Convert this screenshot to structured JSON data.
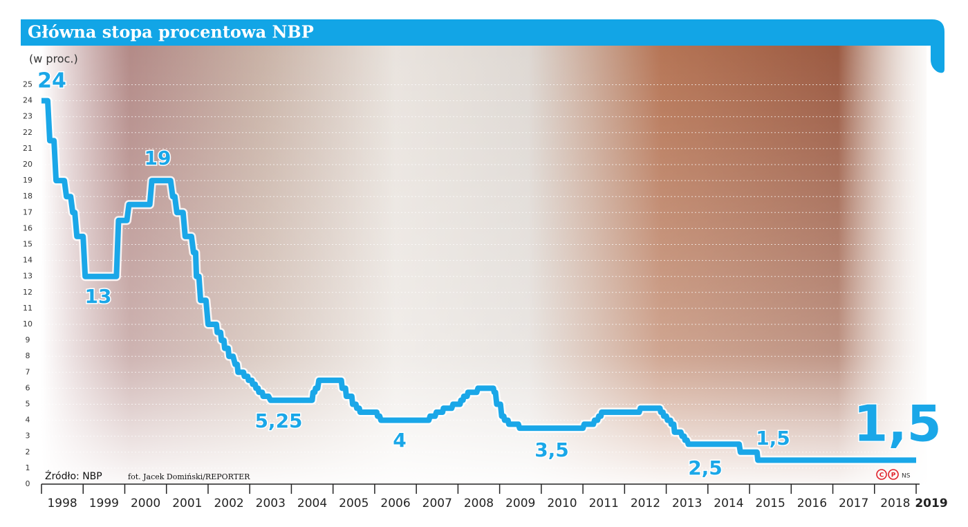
{
  "chart_data": {
    "type": "line",
    "title": "Główna stopa procentowa NBP",
    "y_label": "(w proc.)",
    "source": "Źródło: NBP",
    "photo_credit": "fot. Jacek Domiński/REPORTER",
    "copyright_marks": [
      "C",
      "P"
    ],
    "author": "NS",
    "color": "#1aa7e8",
    "x": [
      1998.0,
      1998.15,
      1998.2,
      1998.3,
      1998.35,
      1998.55,
      1998.6,
      1998.7,
      1998.75,
      1998.8,
      1998.85,
      1999.0,
      1999.05,
      1999.8,
      1999.85,
      2000.05,
      2000.1,
      2000.6,
      2000.65,
      2001.1,
      2001.15,
      2001.2,
      2001.25,
      2001.4,
      2001.45,
      2001.6,
      2001.65,
      2001.7,
      2001.72,
      2001.78,
      2001.82,
      2001.95,
      2002.0,
      2002.2,
      2002.22,
      2002.3,
      2002.32,
      2002.38,
      2002.4,
      2002.48,
      2002.5,
      2002.6,
      2002.65,
      2002.7,
      2002.72,
      2002.85,
      2002.87,
      2002.95,
      2002.97,
      2003.05,
      2003.07,
      2003.13,
      2003.15,
      2003.2,
      2003.22,
      2003.3,
      2003.32,
      2003.45,
      2003.5,
      2004.5,
      2004.52,
      2004.56,
      2004.58,
      2004.63,
      2004.66,
      2005.2,
      2005.22,
      2005.3,
      2005.32,
      2005.45,
      2005.47,
      2005.55,
      2005.57,
      2005.63,
      2005.65,
      2006.05,
      2006.07,
      2006.12,
      2006.15,
      2007.3,
      2007.33,
      2007.45,
      2007.48,
      2007.63,
      2007.65,
      2007.85,
      2007.88,
      2008.05,
      2008.07,
      2008.12,
      2008.14,
      2008.22,
      2008.24,
      2008.45,
      2008.48,
      2008.85,
      2008.87,
      2008.9,
      2008.93,
      2009.02,
      2009.05,
      2009.1,
      2009.12,
      2009.2,
      2009.22,
      2009.45,
      2009.48,
      2011.0,
      2011.03,
      2011.25,
      2011.28,
      2011.35,
      2011.38,
      2011.43,
      2011.45,
      2012.35,
      2012.38,
      2012.85,
      2012.87,
      2012.92,
      2012.94,
      2013.0,
      2013.03,
      2013.1,
      2013.12,
      2013.18,
      2013.2,
      2013.35,
      2013.38,
      2013.43,
      2013.45,
      2013.5,
      2013.53,
      2014.75,
      2014.78,
      2015.18,
      2015.2,
      2019.0
    ],
    "values": [
      24,
      24,
      21.5,
      21.5,
      19,
      19,
      18,
      18,
      17,
      17,
      15.5,
      15.5,
      13,
      13,
      16.5,
      16.5,
      17.5,
      17.5,
      19,
      19,
      18,
      18,
      17,
      17,
      15.5,
      15.5,
      14.5,
      14.5,
      13,
      13,
      11.5,
      11.5,
      10,
      10,
      9.5,
      9.5,
      9,
      9,
      8.5,
      8.5,
      8,
      8,
      7.5,
      7.5,
      7,
      7,
      6.75,
      6.75,
      6.5,
      6.5,
      6.25,
      6.25,
      6,
      6,
      5.75,
      5.75,
      5.5,
      5.5,
      5.25,
      5.25,
      5.75,
      5.75,
      6,
      6,
      6.5,
      6.5,
      6,
      6,
      5.5,
      5.5,
      5,
      5,
      4.75,
      4.75,
      4.5,
      4.5,
      4.25,
      4.25,
      4,
      4,
      4.25,
      4.25,
      4.5,
      4.5,
      4.75,
      4.75,
      5,
      5,
      5.25,
      5.25,
      5.5,
      5.5,
      5.75,
      5.75,
      6,
      6,
      5.75,
      5.75,
      5,
      5,
      4.25,
      4.25,
      4,
      4,
      3.75,
      3.75,
      3.5,
      3.5,
      3.75,
      3.75,
      4,
      4,
      4.25,
      4.25,
      4.5,
      4.5,
      4.75,
      4.75,
      4.5,
      4.5,
      4.25,
      4.25,
      4,
      4,
      3.75,
      3.75,
      3.25,
      3.25,
      3,
      3,
      2.75,
      2.75,
      2.5,
      2.5,
      2,
      2,
      1.5,
      1.5
    ],
    "annotations": [
      "24",
      "13",
      "19",
      "5,25",
      "4",
      "3,5",
      "2,5",
      "1,5",
      "1,5"
    ],
    "xlim": [
      1998,
      2019
    ],
    "xticks": [
      1998,
      1999,
      2000,
      2001,
      2002,
      2003,
      2004,
      2005,
      2006,
      2007,
      2008,
      2009,
      2010,
      2011,
      2012,
      2013,
      2014,
      2015,
      2016,
      2017,
      2018,
      2019
    ],
    "ylim": [
      0,
      25
    ],
    "yticks": [
      0,
      1,
      2,
      3,
      4,
      5,
      6,
      7,
      8,
      9,
      10,
      11,
      12,
      13,
      14,
      15,
      16,
      17,
      18,
      19,
      20,
      21,
      22,
      23,
      24,
      25
    ],
    "grid": true
  }
}
